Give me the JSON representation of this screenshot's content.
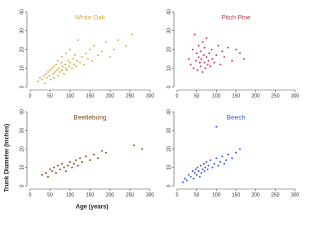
{
  "axis_labels": {
    "x": "Age (years)",
    "y": "Trunk Diameter (inches)"
  },
  "chart_data": [
    {
      "type": "scatter",
      "title": "White Oak",
      "color": "#d4a93a",
      "x": [
        20,
        25,
        30,
        35,
        38,
        40,
        42,
        45,
        48,
        50,
        52,
        55,
        58,
        60,
        60,
        62,
        65,
        68,
        70,
        70,
        72,
        75,
        78,
        80,
        80,
        82,
        85,
        88,
        90,
        90,
        92,
        95,
        98,
        100,
        100,
        105,
        108,
        110,
        112,
        115,
        118,
        120,
        125,
        130,
        135,
        140,
        145,
        150,
        155,
        160,
        170,
        180,
        190,
        200,
        210,
        220,
        240,
        255
      ],
      "values": [
        3,
        5,
        4,
        6,
        2,
        7,
        5,
        8,
        6,
        9,
        4,
        10,
        7,
        11,
        5,
        8,
        12,
        9,
        6,
        14,
        10,
        8,
        13,
        9,
        16,
        11,
        7,
        12,
        10,
        18,
        9,
        14,
        11,
        13,
        20,
        10,
        15,
        12,
        17,
        11,
        14,
        25,
        13,
        16,
        12,
        18,
        15,
        20,
        14,
        22,
        17,
        19,
        24,
        16,
        20,
        25,
        22,
        28
      ],
      "xlim": [
        0,
        300
      ],
      "ylim": [
        0,
        40
      ],
      "xticks": [
        0,
        50,
        100,
        150,
        200,
        250,
        300
      ],
      "yticks": [
        0,
        10,
        20,
        30,
        40
      ]
    },
    {
      "type": "scatter",
      "title": "Pitch Pine",
      "color": "#c0334d",
      "x": [
        30,
        35,
        40,
        42,
        45,
        48,
        50,
        52,
        55,
        55,
        58,
        60,
        60,
        62,
        65,
        65,
        68,
        70,
        70,
        72,
        75,
        75,
        78,
        80,
        82,
        85,
        88,
        90,
        95,
        100,
        105,
        110,
        115,
        120,
        130,
        140,
        150,
        160,
        170
      ],
      "values": [
        15,
        12,
        20,
        10,
        28,
        14,
        18,
        9,
        16,
        22,
        13,
        11,
        19,
        15,
        24,
        8,
        17,
        13,
        21,
        10,
        16,
        26,
        12,
        14,
        18,
        11,
        20,
        15,
        13,
        17,
        22,
        12,
        19,
        16,
        21,
        14,
        20,
        18,
        15
      ],
      "xlim": [
        0,
        300
      ],
      "ylim": [
        0,
        40
      ],
      "xticks": [
        0,
        50,
        100,
        150,
        200,
        250,
        300
      ],
      "yticks": [
        0,
        10,
        20,
        30,
        40
      ]
    },
    {
      "type": "scatter",
      "title": "Beetlebung",
      "color": "#7a4a10",
      "x": [
        30,
        40,
        45,
        50,
        55,
        60,
        65,
        70,
        75,
        80,
        85,
        90,
        95,
        100,
        105,
        110,
        115,
        120,
        125,
        130,
        140,
        150,
        160,
        170,
        180,
        190,
        260,
        280
      ],
      "values": [
        6,
        7,
        5,
        9,
        8,
        10,
        7,
        11,
        9,
        12,
        10,
        8,
        11,
        13,
        10,
        12,
        14,
        11,
        15,
        13,
        16,
        14,
        17,
        15,
        19,
        18,
        22,
        20
      ],
      "xlim": [
        0,
        300
      ],
      "ylim": [
        0,
        40
      ],
      "xticks": [
        0,
        50,
        100,
        150,
        200,
        250,
        300
      ],
      "yticks": [
        0,
        10,
        20,
        30,
        40
      ]
    },
    {
      "type": "scatter",
      "title": "Beech",
      "color": "#3355dd",
      "x": [
        15,
        20,
        25,
        30,
        35,
        40,
        42,
        45,
        48,
        50,
        52,
        55,
        58,
        60,
        62,
        65,
        68,
        70,
        72,
        75,
        78,
        80,
        85,
        90,
        95,
        100,
        100,
        105,
        110,
        115,
        120,
        125,
        130,
        140,
        150,
        160
      ],
      "values": [
        2,
        4,
        3,
        6,
        5,
        8,
        4,
        7,
        9,
        6,
        10,
        8,
        5,
        11,
        7,
        9,
        12,
        8,
        10,
        13,
        9,
        11,
        14,
        10,
        12,
        15,
        32,
        11,
        13,
        16,
        12,
        14,
        17,
        15,
        18,
        20
      ],
      "xlim": [
        0,
        300
      ],
      "ylim": [
        0,
        40
      ],
      "xticks": [
        0,
        50,
        100,
        150,
        200,
        250,
        300
      ],
      "yticks": [
        0,
        10,
        20,
        30,
        40
      ]
    }
  ]
}
